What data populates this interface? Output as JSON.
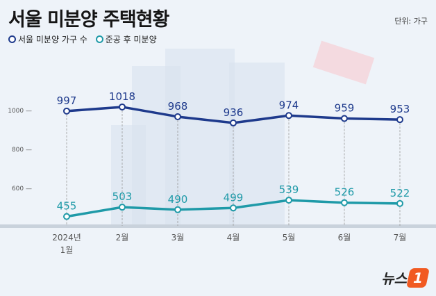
{
  "title": "서울 미분양 주택현황",
  "unit": "단위: 가구",
  "logo": {
    "text": "뉴스",
    "mark": "1"
  },
  "chart_data": {
    "type": "line",
    "title": "서울 미분양 주택현황",
    "ylim": [
      400,
      1200
    ],
    "y_ticks": [
      600,
      800,
      1000
    ],
    "y_tick_labels": [
      "600 —",
      "800 —",
      "1000 —"
    ],
    "categories": [
      "2024년\n1월",
      "2월",
      "3월",
      "4월",
      "5월",
      "6월",
      "7월"
    ],
    "legend_placement": "top-left",
    "grid": false,
    "series": [
      {
        "name": "서울 미분양 가구 수",
        "color": "#1e3a8c",
        "values": [
          997,
          1018,
          968,
          936,
          974,
          959,
          953
        ]
      },
      {
        "name": "준공 후 미분양",
        "color": "#1f9aa8",
        "values": [
          455,
          503,
          490,
          499,
          539,
          526,
          522
        ]
      }
    ]
  }
}
